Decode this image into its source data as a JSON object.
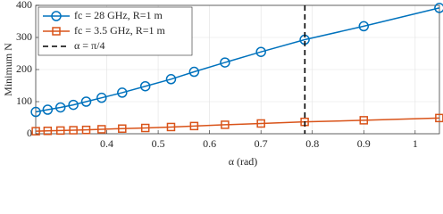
{
  "chart_data": {
    "type": "line",
    "x_label": "α (rad)",
    "y_label": "Minimum N",
    "x": [
      0.262,
      0.285,
      0.31,
      0.335,
      0.36,
      0.39,
      0.43,
      0.475,
      0.525,
      0.57,
      0.63,
      0.7,
      0.785,
      0.9,
      1.047
    ],
    "series": [
      {
        "name": "fc = 28 GHz, R=1 m",
        "color": "#0072bd",
        "marker": "circle",
        "values": [
          68,
          75,
          82,
          90,
          100,
          112,
          128,
          148,
          170,
          193,
          222,
          255,
          293,
          335,
          392
        ]
      },
      {
        "name": "fc = 3.5 GHz, R=1 m",
        "color": "#d95319",
        "marker": "square",
        "values": [
          8,
          9,
          10,
          11,
          12,
          14,
          16,
          18,
          21,
          24,
          28,
          32,
          37,
          42,
          49
        ]
      }
    ],
    "vline": {
      "name": "α = π/4",
      "value": 0.7854,
      "color": "#000000"
    },
    "xlim": [
      0.2618,
      1.0472
    ],
    "ylim": [
      0,
      400
    ],
    "xticks": [
      0.4,
      0.5,
      0.6,
      0.7,
      0.8,
      0.9,
      1
    ],
    "yticks": [
      0,
      100,
      200,
      300,
      400
    ],
    "grid": true,
    "legend": "upper left"
  }
}
